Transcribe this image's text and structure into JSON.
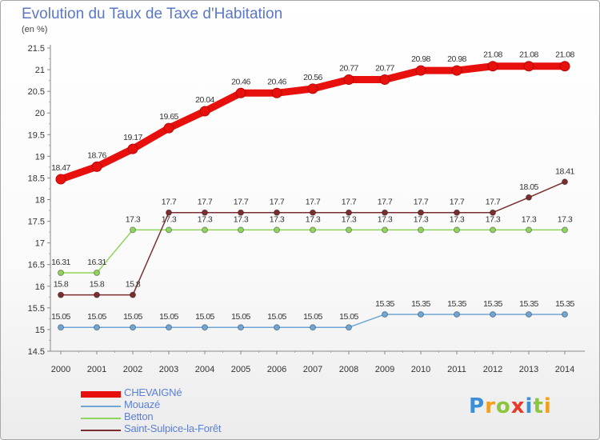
{
  "title": "Evolution du Taux de Taxe d'Habitation",
  "unit": "(en %)",
  "logo": "Proxiti",
  "chart_data": {
    "type": "line",
    "x": [
      "2000",
      "2001",
      "2002",
      "2003",
      "2004",
      "2005",
      "2006",
      "2007",
      "2008",
      "2009",
      "2010",
      "2011",
      "2012",
      "2013",
      "2014"
    ],
    "ylim": [
      14.5,
      21.5
    ],
    "yticks": [
      "14.5",
      "15",
      "15.5",
      "16",
      "16.5",
      "17",
      "17.5",
      "18",
      "18.5",
      "19",
      "19.5",
      "20",
      "20.5",
      "21",
      "21.5"
    ],
    "grid": false,
    "legend_position": "bottom-left",
    "series": [
      {
        "name": "CHEVAIGNé",
        "color": "#e8100c",
        "values": [
          18.47,
          18.76,
          19.17,
          19.65,
          20.04,
          20.46,
          20.46,
          20.56,
          20.77,
          20.77,
          20.98,
          20.98,
          21.08,
          21.08,
          21.08
        ],
        "labels": [
          "18.47",
          "18.76",
          "19.17",
          "19.65",
          "20.04",
          "20.46",
          "20.46",
          "20.56",
          "20.77",
          "20.77",
          "20.98",
          "20.98",
          "21.08",
          "21.08",
          "21.08"
        ]
      },
      {
        "name": "Mouazé",
        "color": "#6fa6d6",
        "values": [
          15.05,
          15.05,
          15.05,
          15.05,
          15.05,
          15.05,
          15.05,
          15.05,
          15.05,
          15.35,
          15.35,
          15.35,
          15.35,
          15.35,
          15.35
        ],
        "labels": [
          "15.05",
          "15.05",
          "15.05",
          "15.05",
          "15.05",
          "15.05",
          "15.05",
          "15.05",
          "15.05",
          "15.35",
          "15.35",
          "15.35",
          "15.35",
          "15.35",
          "15.35"
        ]
      },
      {
        "name": "Betton",
        "color": "#8fd45c",
        "values": [
          16.31,
          16.31,
          17.3,
          17.3,
          17.3,
          17.3,
          17.3,
          17.3,
          17.3,
          17.3,
          17.3,
          17.3,
          17.3,
          17.3,
          17.3
        ],
        "labels": [
          "16.31",
          "16.31",
          "17.3",
          "17.3",
          "17.3",
          "17.3",
          "17.3",
          "17.3",
          "17.3",
          "17.3",
          "17.3",
          "17.3",
          "17.3",
          "17.3",
          "17.3"
        ]
      },
      {
        "name": "Saint-Sulpice-la-Forêt",
        "color": "#7a2e2e",
        "values": [
          15.8,
          15.8,
          15.8,
          17.7,
          17.7,
          17.7,
          17.7,
          17.7,
          17.7,
          17.7,
          17.7,
          17.7,
          17.7,
          18.05,
          18.41
        ],
        "labels": [
          "15.8",
          "15.8",
          "15.8",
          "17.7",
          "17.7",
          "17.7",
          "17.7",
          "17.7",
          "17.7",
          "17.7",
          "17.7",
          "17.7",
          "17.7",
          "18.05",
          "18.41"
        ]
      }
    ]
  }
}
